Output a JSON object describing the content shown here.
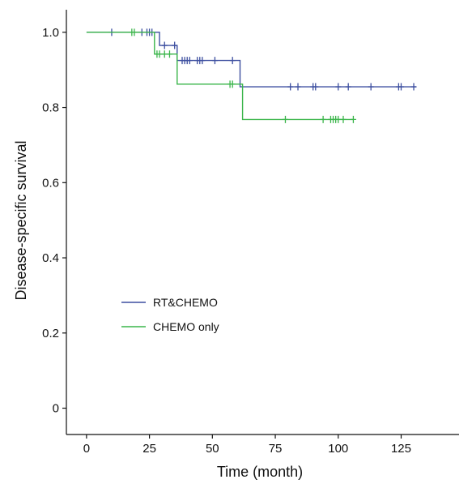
{
  "chart_data": {
    "type": "line",
    "subtype": "kaplan-meier",
    "title": "",
    "xlabel": "Time (month)",
    "ylabel": "Disease-specific survival",
    "xlim": [
      -8,
      148
    ],
    "ylim": [
      -0.07,
      1.06
    ],
    "x_ticks": [
      0,
      25,
      50,
      75,
      100,
      125
    ],
    "y_ticks": [
      0,
      0.2,
      0.4,
      0.6,
      0.8,
      1.0
    ],
    "y_tick_labels": [
      "0",
      "0.2",
      "0.4",
      "0.6",
      "0.8",
      "1.0"
    ],
    "grid": false,
    "legend_position": "center-left",
    "series": [
      {
        "name": "RT&CHEMO",
        "color": "#3d4fa0",
        "steps": [
          [
            0,
            1.0
          ],
          [
            29,
            1.0
          ],
          [
            29,
            0.965
          ],
          [
            36,
            0.965
          ],
          [
            36,
            0.925
          ],
          [
            61,
            0.925
          ],
          [
            61,
            0.855
          ],
          [
            131,
            0.855
          ]
        ],
        "censored": [
          [
            10,
            1.0
          ],
          [
            22,
            1.0
          ],
          [
            24,
            1.0
          ],
          [
            25,
            1.0
          ],
          [
            26,
            1.0
          ],
          [
            31,
            0.965
          ],
          [
            35,
            0.965
          ],
          [
            38,
            0.925
          ],
          [
            39,
            0.925
          ],
          [
            40,
            0.925
          ],
          [
            41,
            0.925
          ],
          [
            44,
            0.925
          ],
          [
            45,
            0.925
          ],
          [
            46,
            0.925
          ],
          [
            51,
            0.925
          ],
          [
            58,
            0.925
          ],
          [
            81,
            0.855
          ],
          [
            84,
            0.855
          ],
          [
            90,
            0.855
          ],
          [
            91,
            0.855
          ],
          [
            100,
            0.855
          ],
          [
            104,
            0.855
          ],
          [
            113,
            0.855
          ],
          [
            124,
            0.855
          ],
          [
            125,
            0.855
          ],
          [
            130,
            0.855
          ]
        ]
      },
      {
        "name": "CHEMO only",
        "color": "#3ab54a",
        "steps": [
          [
            0,
            1.0
          ],
          [
            27,
            1.0
          ],
          [
            27,
            0.942
          ],
          [
            36,
            0.942
          ],
          [
            36,
            0.862
          ],
          [
            62,
            0.862
          ],
          [
            62,
            0.768
          ],
          [
            106,
            0.768
          ]
        ],
        "censored": [
          [
            18,
            1.0
          ],
          [
            19,
            1.0
          ],
          [
            28,
            0.942
          ],
          [
            29,
            0.942
          ],
          [
            31,
            0.942
          ],
          [
            33,
            0.942
          ],
          [
            57,
            0.862
          ],
          [
            58,
            0.862
          ],
          [
            79,
            0.768
          ],
          [
            94,
            0.768
          ],
          [
            97,
            0.768
          ],
          [
            98,
            0.768
          ],
          [
            99,
            0.768
          ],
          [
            100,
            0.768
          ],
          [
            102,
            0.768
          ],
          [
            106,
            0.768
          ]
        ]
      }
    ]
  }
}
